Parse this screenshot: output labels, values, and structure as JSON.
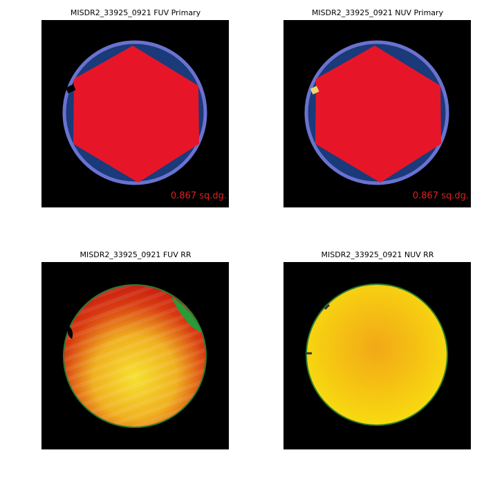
{
  "panels": [
    {
      "title": "MISDR2_33925_0921 FUV Primary",
      "annotation": "0.867 sq.dg."
    },
    {
      "title": "MISDR2_33925_0921 NUV Primary",
      "annotation": "0.867 sq.dg."
    },
    {
      "title": "MISDR2_33925_0921 FUV RR"
    },
    {
      "title": "MISDR2_33925_0921 NUV RR"
    }
  ]
}
